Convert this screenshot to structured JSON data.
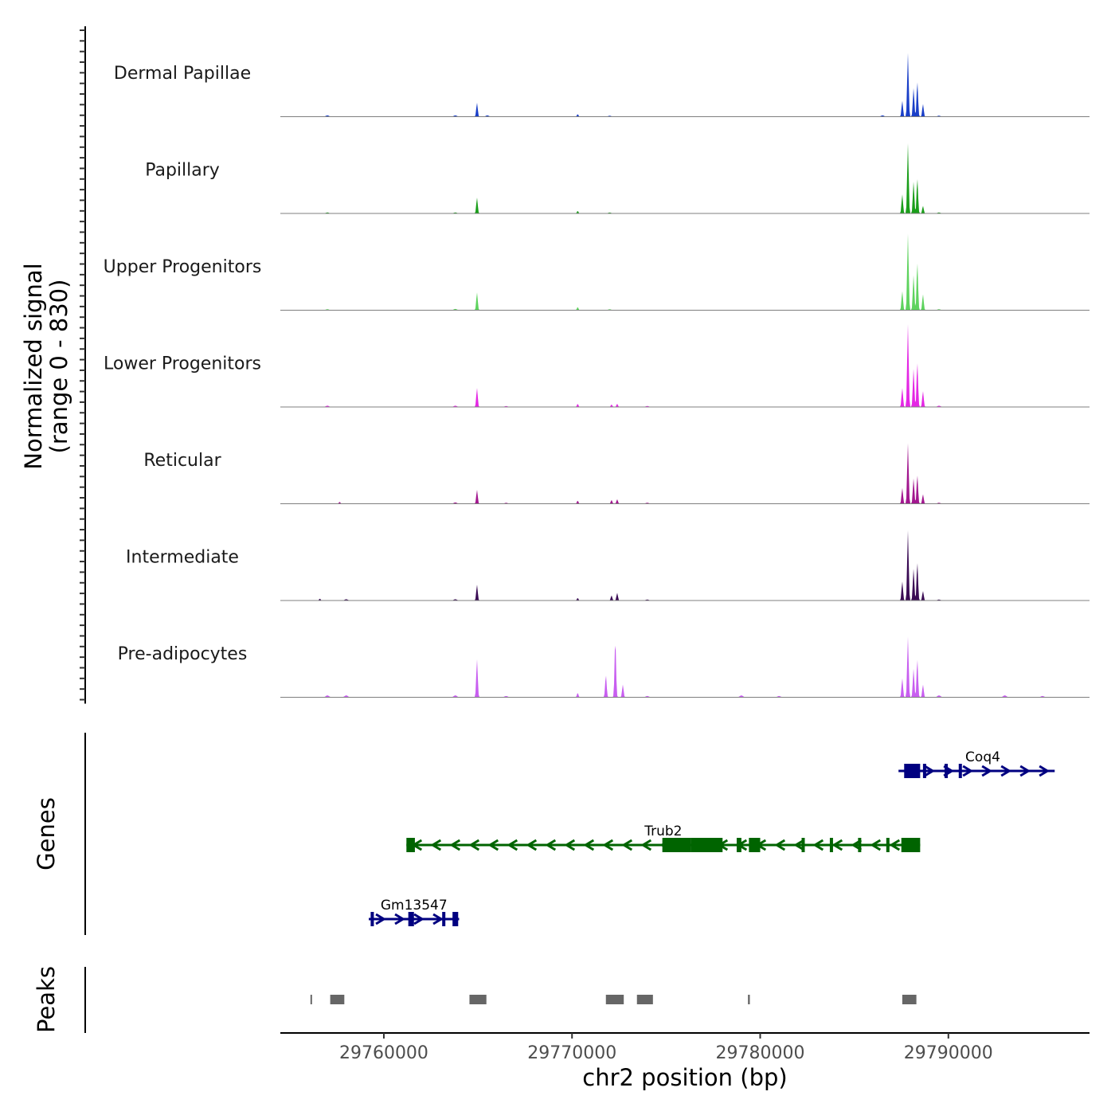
{
  "chart_data": {
    "type": "area",
    "title": "",
    "xlabel": "chr2 position (bp)",
    "ylabel_line1": "Normalized signal",
    "ylabel_line2": "(range 0 - 830)",
    "signal_range": [
      0,
      830
    ],
    "xlim": [
      29754500,
      29797500
    ],
    "x_ticks": [
      29760000,
      29770000,
      29780000,
      29790000
    ],
    "x_tick_labels": [
      "29760000",
      "29770000",
      "29780000",
      "29790000"
    ],
    "baseline_color": "#7f7f7f",
    "tracks": [
      {
        "name": "Dermal Papillae",
        "color": "#1a3fc8",
        "peaks": [
          [
            29764950,
            0.22
          ],
          [
            29770300,
            0.04
          ],
          [
            29787550,
            0.25
          ],
          [
            29787850,
            1.0
          ],
          [
            29788150,
            0.45
          ],
          [
            29788350,
            0.55
          ],
          [
            29788650,
            0.2
          ]
        ],
        "noise": [
          [
            29757000,
            0.02
          ],
          [
            29763800,
            0.02
          ],
          [
            29765500,
            0.02
          ],
          [
            29772000,
            0.015
          ],
          [
            29786500,
            0.02
          ],
          [
            29789500,
            0.015
          ]
        ]
      },
      {
        "name": "Papillary",
        "color": "#1a9e1a",
        "peaks": [
          [
            29764950,
            0.25
          ],
          [
            29770300,
            0.04
          ],
          [
            29787550,
            0.3
          ],
          [
            29787850,
            1.1
          ],
          [
            29788150,
            0.5
          ],
          [
            29788350,
            0.55
          ],
          [
            29788650,
            0.12
          ]
        ],
        "noise": [
          [
            29757000,
            0.015
          ],
          [
            29763800,
            0.015
          ],
          [
            29772000,
            0.015
          ],
          [
            29789500,
            0.015
          ]
        ]
      },
      {
        "name": "Upper Progenitors",
        "color": "#5ed35e",
        "peaks": [
          [
            29764950,
            0.28
          ],
          [
            29770300,
            0.05
          ],
          [
            29787550,
            0.3
          ],
          [
            29787850,
            1.2
          ],
          [
            29788150,
            0.55
          ],
          [
            29788350,
            0.75
          ],
          [
            29788650,
            0.25
          ]
        ],
        "noise": [
          [
            29757000,
            0.015
          ],
          [
            29763800,
            0.02
          ],
          [
            29772000,
            0.015
          ],
          [
            29789500,
            0.015
          ]
        ]
      },
      {
        "name": "Lower Progenitors",
        "color": "#e427e4",
        "peaks": [
          [
            29764950,
            0.3
          ],
          [
            29770300,
            0.05
          ],
          [
            29772100,
            0.04
          ],
          [
            29772400,
            0.05
          ],
          [
            29787550,
            0.3
          ],
          [
            29787850,
            1.3
          ],
          [
            29788150,
            0.6
          ],
          [
            29788350,
            0.7
          ],
          [
            29788650,
            0.25
          ]
        ],
        "noise": [
          [
            29757000,
            0.02
          ],
          [
            29763800,
            0.02
          ],
          [
            29766500,
            0.015
          ],
          [
            29774000,
            0.015
          ],
          [
            29789500,
            0.02
          ]
        ]
      },
      {
        "name": "Reticular",
        "color": "#a2178f",
        "peaks": [
          [
            29757650,
            0.03
          ],
          [
            29764950,
            0.22
          ],
          [
            29770300,
            0.05
          ],
          [
            29772100,
            0.06
          ],
          [
            29772400,
            0.07
          ],
          [
            29787550,
            0.25
          ],
          [
            29787850,
            0.95
          ],
          [
            29788150,
            0.4
          ],
          [
            29788350,
            0.45
          ],
          [
            29788650,
            0.15
          ]
        ],
        "noise": [
          [
            29763800,
            0.02
          ],
          [
            29766500,
            0.015
          ],
          [
            29774000,
            0.015
          ],
          [
            29789500,
            0.015
          ]
        ]
      },
      {
        "name": "Intermediate",
        "color": "#3a0b54",
        "peaks": [
          [
            29756600,
            0.03
          ],
          [
            29764950,
            0.25
          ],
          [
            29770300,
            0.04
          ],
          [
            29772100,
            0.08
          ],
          [
            29772400,
            0.12
          ],
          [
            29787550,
            0.3
          ],
          [
            29787850,
            1.1
          ],
          [
            29788150,
            0.5
          ],
          [
            29788350,
            0.6
          ],
          [
            29788650,
            0.15
          ]
        ],
        "noise": [
          [
            29758000,
            0.02
          ],
          [
            29763800,
            0.02
          ],
          [
            29774000,
            0.015
          ],
          [
            29789500,
            0.015
          ]
        ]
      },
      {
        "name": "Pre-adipocytes",
        "color": "#c85ef0",
        "peaks": [
          [
            29764950,
            0.6
          ],
          [
            29770300,
            0.07
          ],
          [
            29771800,
            0.35
          ],
          [
            29772300,
            0.9
          ],
          [
            29772700,
            0.2
          ],
          [
            29787550,
            0.3
          ],
          [
            29787850,
            0.95
          ],
          [
            29788150,
            0.45
          ],
          [
            29788350,
            0.6
          ],
          [
            29788650,
            0.2
          ]
        ],
        "noise": [
          [
            29757000,
            0.03
          ],
          [
            29758000,
            0.03
          ],
          [
            29763800,
            0.03
          ],
          [
            29766500,
            0.02
          ],
          [
            29774000,
            0.02
          ],
          [
            29779000,
            0.03
          ],
          [
            29781000,
            0.02
          ],
          [
            29789500,
            0.03
          ],
          [
            29793000,
            0.03
          ],
          [
            29795000,
            0.02
          ]
        ]
      }
    ],
    "genes_label": "Genes",
    "genes": [
      {
        "name": "Coq4",
        "strand": "+",
        "color": "#000080",
        "start": 29787350,
        "end": 29795650,
        "row": 1,
        "exons": [
          [
            29787650,
            29788500
          ],
          [
            29788650,
            29788800
          ],
          [
            29789800,
            29789950
          ],
          [
            29790550,
            29790700
          ]
        ]
      },
      {
        "name": "Trub2",
        "strand": "-",
        "color": "#006400",
        "start": 29761200,
        "end": 29788500,
        "row": 2,
        "exons": [
          [
            29761200,
            29761650
          ],
          [
            29774800,
            29776300
          ],
          [
            29776300,
            29778000
          ],
          [
            29778750,
            29779000
          ],
          [
            29779400,
            29780000
          ],
          [
            29782200,
            29782350
          ],
          [
            29783700,
            29783850
          ],
          [
            29785200,
            29785300
          ],
          [
            29786700,
            29786800
          ],
          [
            29787500,
            29788500
          ]
        ]
      },
      {
        "name": "Gm13547",
        "strand": "+",
        "color": "#000080",
        "start": 29759200,
        "end": 29764000,
        "row": 3,
        "exons": [
          [
            29759300,
            29759450
          ],
          [
            29761300,
            29761600
          ],
          [
            29763100,
            29763250
          ],
          [
            29763650,
            29763950
          ]
        ]
      }
    ],
    "peaks_label": "Peaks",
    "peak_color": "#666666",
    "peak_regions": [
      [
        29756100,
        29756150
      ],
      [
        29757150,
        29757900
      ],
      [
        29764550,
        29765450
      ],
      [
        29771800,
        29772750
      ],
      [
        29773450,
        29774300
      ],
      [
        29779350,
        29779450
      ],
      [
        29787550,
        29788300
      ]
    ]
  }
}
